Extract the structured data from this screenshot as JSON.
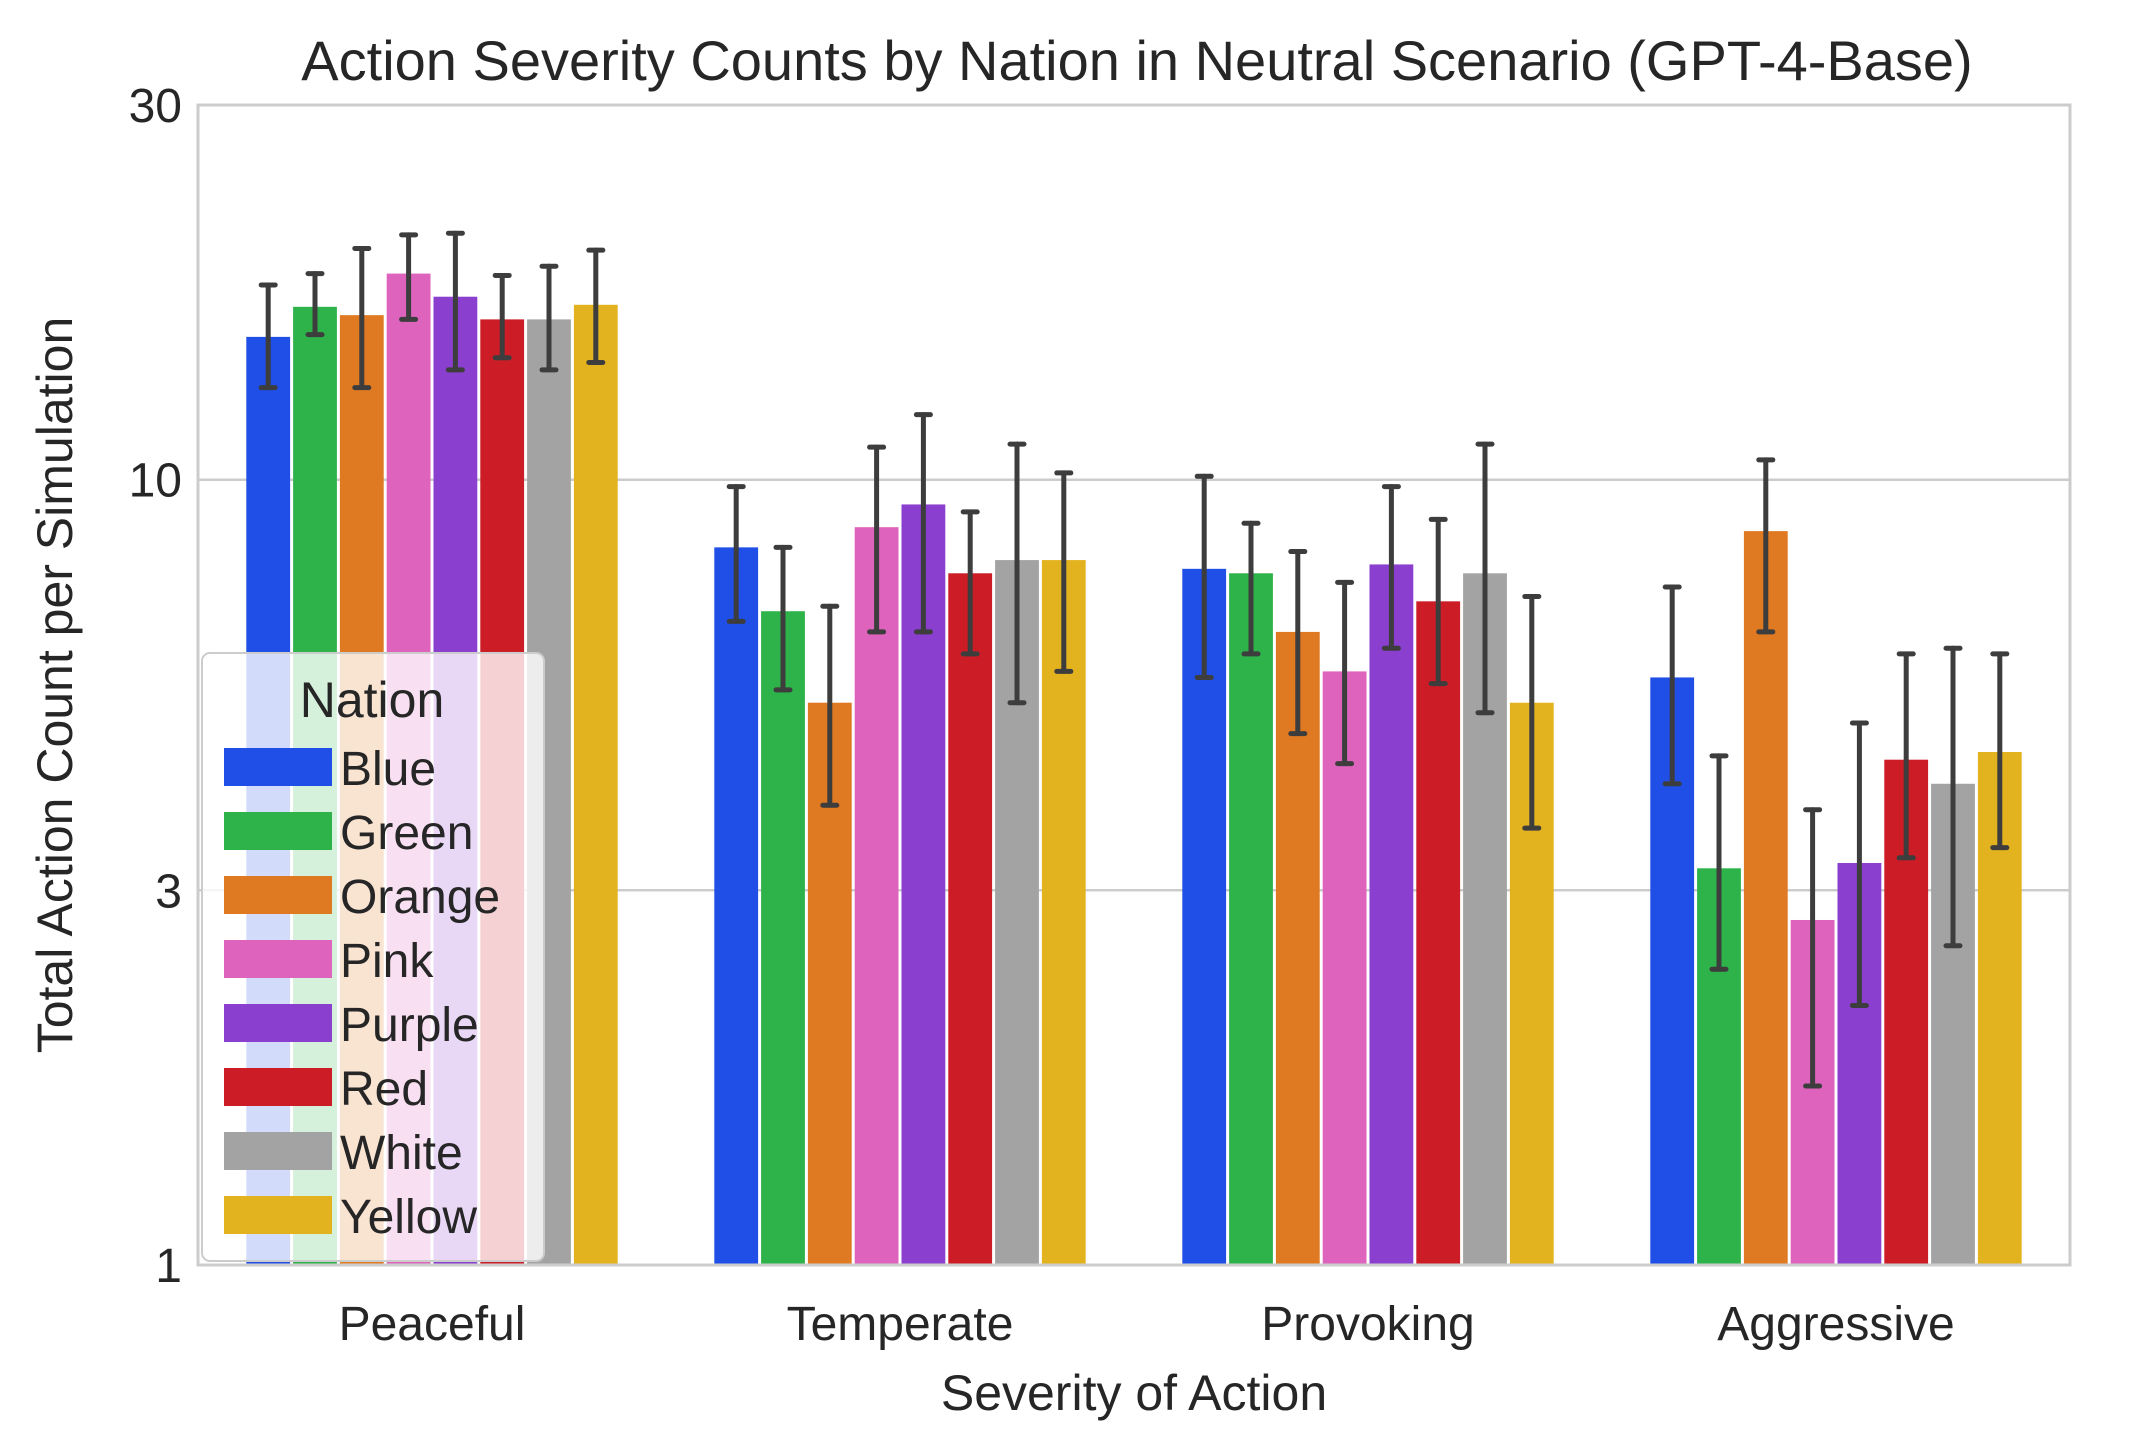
{
  "chart_data": {
    "type": "bar",
    "title": "Action Severity Counts by Nation in Neutral Scenario (GPT-4-Base)",
    "xlabel": "Severity of Action",
    "ylabel": "Total Action Count per Simulation",
    "yscale": "log",
    "ylim": [
      1,
      30
    ],
    "yticks": [
      "1",
      "3",
      "10",
      "30"
    ],
    "categories": [
      "Peaceful",
      "Temperate",
      "Provoking",
      "Aggressive"
    ],
    "legend": {
      "title": "Nation",
      "position": "lower-left"
    },
    "grid": true,
    "series": [
      {
        "name": "Blue",
        "color": "#1f4fe6",
        "values": [
          15.2,
          8.2,
          7.7,
          5.6
        ],
        "err_low": [
          13.1,
          6.6,
          5.6,
          4.1
        ],
        "err_high": [
          17.7,
          9.8,
          10.1,
          7.3
        ]
      },
      {
        "name": "Green",
        "color": "#2db34a",
        "values": [
          16.6,
          6.8,
          7.6,
          3.2
        ],
        "err_low": [
          15.3,
          5.4,
          6.0,
          2.38
        ],
        "err_high": [
          18.3,
          8.2,
          8.8,
          4.45
        ]
      },
      {
        "name": "Orange",
        "color": "#e07a22",
        "values": [
          16.2,
          5.2,
          6.4,
          8.6
        ],
        "err_low": [
          13.1,
          3.85,
          4.75,
          6.4
        ],
        "err_high": [
          19.7,
          6.9,
          8.1,
          10.6
        ]
      },
      {
        "name": "Pink",
        "color": "#dd63bc",
        "values": [
          18.3,
          8.7,
          5.7,
          2.75
        ],
        "err_low": [
          16.0,
          6.4,
          4.35,
          1.69
        ],
        "err_high": [
          20.5,
          11.0,
          7.4,
          3.8
        ]
      },
      {
        "name": "Purple",
        "color": "#8a3fcf",
        "values": [
          17.1,
          9.3,
          7.8,
          3.25
        ],
        "err_low": [
          13.8,
          6.4,
          6.1,
          2.14
        ],
        "err_high": [
          20.6,
          12.1,
          9.8,
          4.9
        ]
      },
      {
        "name": "Red",
        "color": "#cc1c26",
        "values": [
          16.0,
          7.6,
          7.0,
          4.4
        ],
        "err_low": [
          14.3,
          6.0,
          5.5,
          3.3
        ],
        "err_high": [
          18.2,
          9.1,
          8.9,
          6.0
        ]
      },
      {
        "name": "White",
        "color": "#a3a3a3",
        "values": [
          16.0,
          7.9,
          7.6,
          4.1
        ],
        "err_low": [
          13.8,
          5.2,
          5.05,
          2.55
        ],
        "err_high": [
          18.7,
          11.1,
          11.1,
          6.1
        ]
      },
      {
        "name": "Yellow",
        "color": "#e2b31f",
        "values": [
          16.7,
          7.9,
          5.2,
          4.5
        ],
        "err_low": [
          14.1,
          5.7,
          3.6,
          3.4
        ],
        "err_high": [
          19.6,
          10.2,
          7.1,
          6.0
        ]
      }
    ]
  }
}
